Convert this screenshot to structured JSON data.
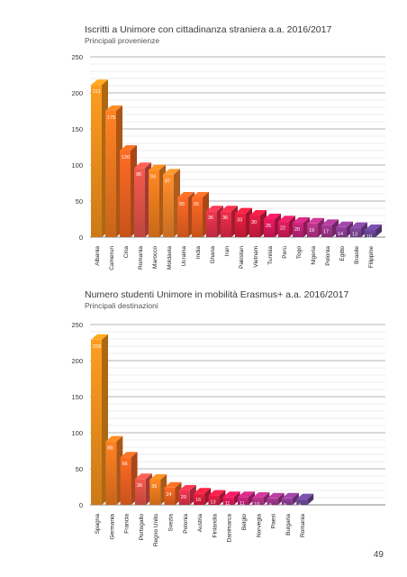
{
  "page": {
    "number": "49"
  },
  "chart_data": [
    {
      "type": "bar",
      "title": "Iscritti a Unimore con cittadinanza straniera a.a. 2016/2017",
      "subtitle": "Principali provenienze",
      "ylim": [
        0,
        250
      ],
      "yticks": [
        0,
        50,
        100,
        150,
        200,
        250
      ],
      "grid": true,
      "categories": [
        "Albania",
        "Camerun",
        "Cina",
        "Romania",
        "Marocco",
        "Moldavia",
        "Ucraina",
        "India",
        "Ghana",
        "Iran",
        "Pakistan",
        "Vietnam",
        "Tunisia",
        "Perù",
        "Togo",
        "Nigeria",
        "Polonia",
        "Egitto",
        "Brasile",
        "Filippine"
      ],
      "values": [
        211,
        175,
        120,
        96,
        93,
        87,
        55,
        55,
        36,
        36,
        33,
        30,
        25,
        22,
        20,
        19,
        17,
        14,
        13,
        10
      ],
      "colors": [
        "#f7941d",
        "#f47b20",
        "#f26522",
        "#e8554a",
        "#f4801f",
        "#f4862a",
        "#f26522",
        "#f26522",
        "#e6334d",
        "#e52b48",
        "#e01e3c",
        "#dc1d44",
        "#e2185b",
        "#d91c5c",
        "#c4257a",
        "#b83488",
        "#a2378e",
        "#8e3e96",
        "#7d4499",
        "#6c479a"
      ]
    },
    {
      "type": "bar",
      "title": "Numero studenti Unimore in mobilità Erasmus+  a.a. 2016/2017",
      "subtitle": "Principali destinazioni",
      "ylim": [
        0,
        250
      ],
      "yticks": [
        0,
        50,
        100,
        150,
        200,
        250
      ],
      "grid": true,
      "categories": [
        "Spagna",
        "Germania",
        "Francia",
        "Portogallo",
        "Regno Unito",
        "Svezia",
        "Polonia",
        "Austria",
        "Finlandia",
        "Danimarca",
        "Belgio",
        "Norvegia",
        "Paesi",
        "Bulgaria",
        "Romania"
      ],
      "values": [
        229,
        88,
        66,
        36,
        35,
        24,
        20,
        16,
        13,
        11,
        11,
        10,
        9,
        9,
        8
      ],
      "colors": [
        "#f7941d",
        "#f47b20",
        "#f26522",
        "#e8554a",
        "#f4801f",
        "#f26522",
        "#e6334d",
        "#e01e3c",
        "#dc1d44",
        "#e2185b",
        "#c4257a",
        "#b83488",
        "#a2378e",
        "#8e3e96",
        "#6c479a"
      ]
    }
  ]
}
